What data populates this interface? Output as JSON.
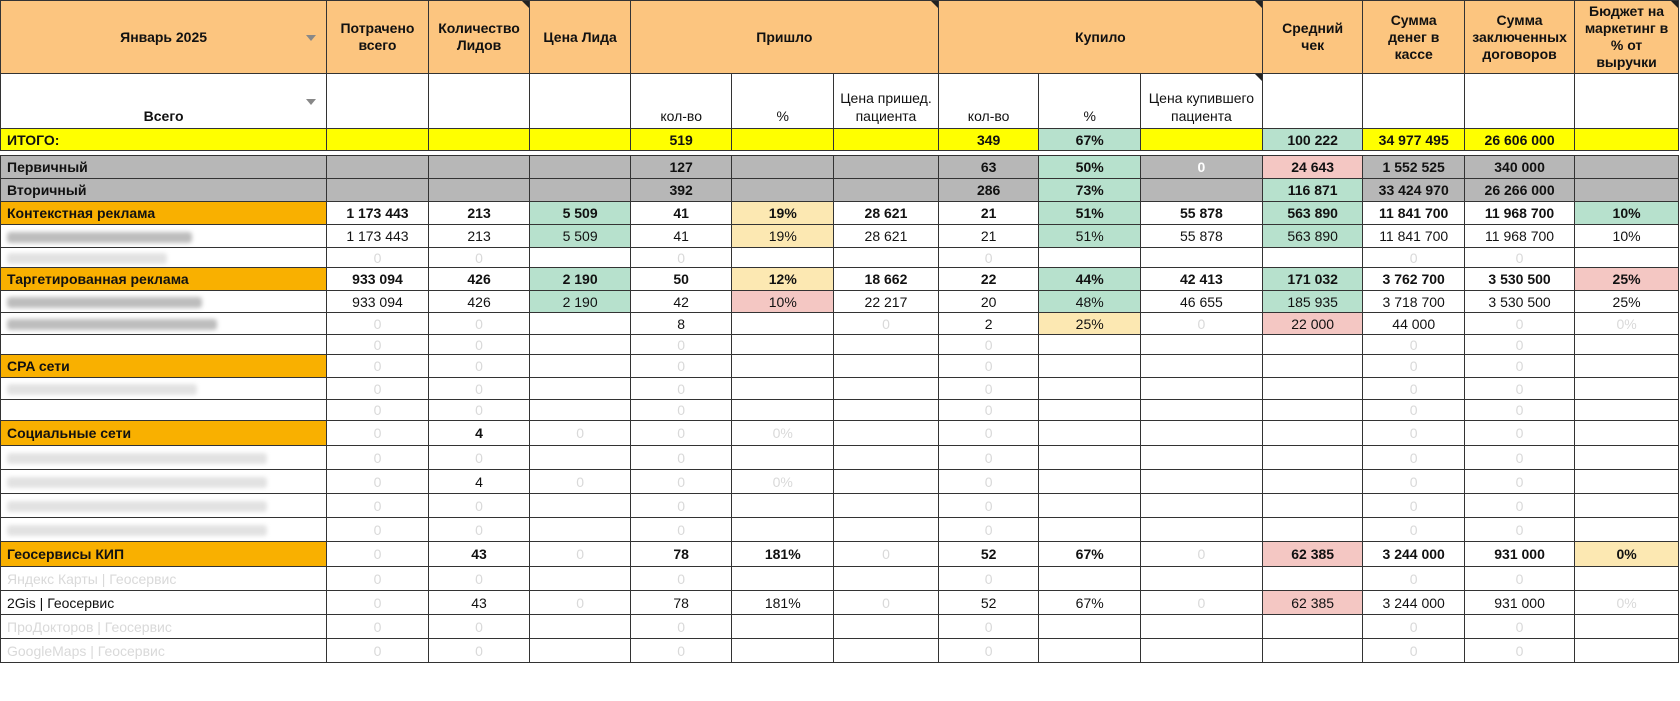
{
  "header": {
    "month": "Январь 2025",
    "spent": "Потрачено всего",
    "leads_count": "Количество Лидов",
    "lead_price": "Цена Лида",
    "arrived": "Пришло",
    "bought": "Купило",
    "avg_check": "Средний чек",
    "cash": "Сумма денег в кассе",
    "contracts": "Сумма заключенных договоров",
    "budget": "Бюджет на маркетинг в % от выручки"
  },
  "subheader": {
    "total_label": "Всего",
    "qty": "кол-во",
    "pct": "%",
    "arrived_price": "Цена пришед. пациента",
    "bought_price": "Цена купившего пациента"
  },
  "rows": {
    "itogo": {
      "label": "ИТОГО:",
      "c1": "",
      "c2": "",
      "c3": "",
      "c4": "519",
      "c5": "",
      "c6": "",
      "c7": "349",
      "c8": "67%",
      "c9": "",
      "c10": "100 222",
      "c11": "34 977 495",
      "c12": "26 606 000",
      "c13": ""
    },
    "primary": {
      "label": "Первичный",
      "c1": "",
      "c2": "",
      "c3": "",
      "c4": "127",
      "c5": "",
      "c6": "",
      "c7": "63",
      "c8": "50%",
      "c9": "0",
      "c10": "24 643",
      "c11": "1 552 525",
      "c12": "340 000",
      "c13": ""
    },
    "secondary": {
      "label": "Вторичный",
      "c1": "",
      "c2": "",
      "c3": "",
      "c4": "392",
      "c5": "",
      "c6": "",
      "c7": "286",
      "c8": "73%",
      "c9": "",
      "c10": "116 871",
      "c11": "33 424 970",
      "c12": "26 266 000",
      "c13": ""
    },
    "context": {
      "label": "Контекстная реклама",
      "c1": "1 173 443",
      "c2": "213",
      "c3": "5 509",
      "c4": "41",
      "c5": "19%",
      "c6": "28 621",
      "c7": "21",
      "c8": "51%",
      "c9": "55 878",
      "c10": "563 890",
      "c11": "11 841 700",
      "c12": "11 968 700",
      "c13": "10%"
    },
    "context_1": {
      "c1": "1 173 443",
      "c2": "213",
      "c3": "5 509",
      "c4": "41",
      "c5": "19%",
      "c6": "28 621",
      "c7": "21",
      "c8": "51%",
      "c9": "55 878",
      "c10": "563 890",
      "c11": "11 841 700",
      "c12": "11 968 700",
      "c13": "10%"
    },
    "context_2": {
      "c1": "0",
      "c2": "0",
      "c4": "0",
      "c7": "0",
      "c11": "0",
      "c12": "0"
    },
    "target": {
      "label": "Таргетированная реклама",
      "c1": "933 094",
      "c2": "426",
      "c3": "2 190",
      "c4": "50",
      "c5": "12%",
      "c6": "18 662",
      "c7": "22",
      "c8": "44%",
      "c9": "42 413",
      "c10": "171 032",
      "c11": "3 762 700",
      "c12": "3 530 500",
      "c13": "25%"
    },
    "target_1": {
      "c1": "933 094",
      "c2": "426",
      "c3": "2 190",
      "c4": "42",
      "c5": "10%",
      "c6": "22 217",
      "c7": "20",
      "c8": "48%",
      "c9": "46 655",
      "c10": "185 935",
      "c11": "3 718 700",
      "c12": "3 530 500",
      "c13": "25%"
    },
    "target_2": {
      "c1": "0",
      "c2": "0",
      "c4": "8",
      "c6": "0",
      "c7": "2",
      "c8": "25%",
      "c9": "0",
      "c10": "22 000",
      "c11": "44 000",
      "c12": "0",
      "c13": "0%"
    },
    "target_3": {
      "c1": "0",
      "c2": "0",
      "c4": "0",
      "c7": "0",
      "c11": "0",
      "c12": "0"
    },
    "cpa": {
      "label": "CPA сети",
      "c1": "0",
      "c2": "0",
      "c4": "0",
      "c7": "0",
      "c11": "0",
      "c12": "0"
    },
    "cpa_1": {
      "c1": "0",
      "c2": "0",
      "c4": "0",
      "c7": "0",
      "c11": "0",
      "c12": "0"
    },
    "cpa_2": {
      "c1": "0",
      "c2": "0",
      "c4": "0",
      "c7": "0",
      "c11": "0",
      "c12": "0"
    },
    "social": {
      "label": "Социальные сети",
      "c1": "0",
      "c2": "4",
      "c3": "0",
      "c4": "0",
      "c5": "0%",
      "c7": "0",
      "c11": "0",
      "c12": "0"
    },
    "social_1": {
      "c1": "0",
      "c2": "0",
      "c4": "0",
      "c7": "0",
      "c11": "0",
      "c12": "0"
    },
    "social_2": {
      "c1": "0",
      "c2": "4",
      "c3": "0",
      "c4": "0",
      "c5": "0%",
      "c7": "0",
      "c11": "0",
      "c12": "0"
    },
    "social_3": {
      "c1": "0",
      "c2": "0",
      "c4": "0",
      "c7": "0",
      "c11": "0",
      "c12": "0"
    },
    "social_4": {
      "c1": "0",
      "c2": "0",
      "c4": "0",
      "c7": "0",
      "c11": "0",
      "c12": "0"
    },
    "geo": {
      "label": "Геосервисы КИП",
      "c1": "0",
      "c2": "43",
      "c3": "0",
      "c4": "78",
      "c5": "181%",
      "c6": "0",
      "c7": "52",
      "c8": "67%",
      "c9": "0",
      "c10": "62 385",
      "c11": "3 244 000",
      "c12": "931 000",
      "c13": "0%"
    },
    "geo_1": {
      "label": "Яндекс Карты | Геосервис",
      "c1": "0",
      "c2": "0",
      "c4": "0",
      "c7": "0",
      "c11": "0",
      "c12": "0"
    },
    "geo_2": {
      "label": "2Gis | Геосервис",
      "c1": "0",
      "c2": "43",
      "c3": "0",
      "c4": "78",
      "c5": "181%",
      "c6": "0",
      "c7": "52",
      "c8": "67%",
      "c9": "0",
      "c10": "62 385",
      "c11": "3 244 000",
      "c12": "931 000",
      "c13": "0%"
    },
    "geo_3": {
      "label": "ПроДокторов | Геосервис",
      "c1": "0",
      "c2": "0",
      "c4": "0",
      "c7": "0",
      "c11": "0",
      "c12": "0"
    },
    "geo_4": {
      "label": "GoogleMaps | Геосервис",
      "c1": "0",
      "c2": "0",
      "c4": "0",
      "c7": "0",
      "c11": "0",
      "c12": "0"
    }
  },
  "colors": {
    "header": "#fcc57f",
    "total": "#ffff00",
    "category": "#f9b000",
    "gray": "#b7b7b7",
    "green": "#b7e1cd",
    "red": "#f4c7c3",
    "yellow": "#fce8b2"
  }
}
